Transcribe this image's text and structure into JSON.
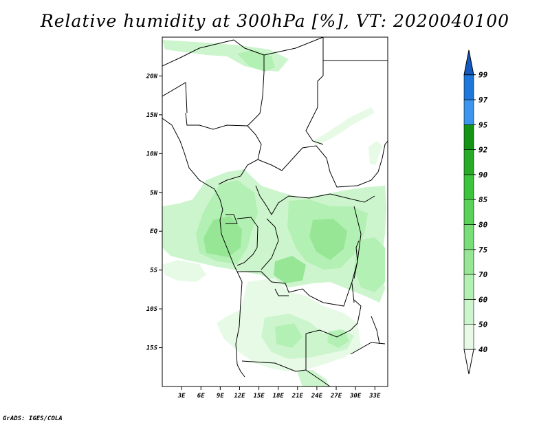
{
  "title": "Relative humidity at 300hPa [%], VT: 2020040100",
  "credit": "GrADS: IGES/COLA",
  "map": {
    "lon_ticks": [
      "3E",
      "6E",
      "9E",
      "12E",
      "15E",
      "18E",
      "21E",
      "24E",
      "27E",
      "30E",
      "33E"
    ],
    "lat_ticks": [
      "20N",
      "15N",
      "10N",
      "5N",
      "EQ",
      "5S",
      "10S",
      "15S"
    ],
    "lon_range": [
      0,
      35
    ],
    "lat_range": [
      -20,
      25
    ],
    "field": "relative humidity 300hPa"
  },
  "colorbar": {
    "labels": [
      "40",
      "50",
      "60",
      "70",
      "75",
      "80",
      "85",
      "90",
      "92",
      "95",
      "97",
      "99"
    ],
    "colors": [
      "#ffffff",
      "#e6fae6",
      "#cdf5cd",
      "#b3f0b3",
      "#96e696",
      "#78de78",
      "#5ad25a",
      "#3cc43c",
      "#28ac28",
      "#149414",
      "#3c96ee",
      "#1e78dc",
      "#1459be"
    ]
  }
}
